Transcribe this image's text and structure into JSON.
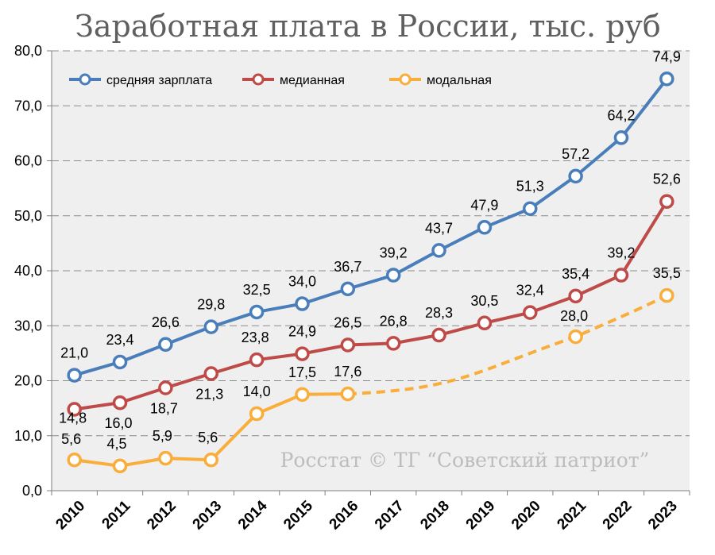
{
  "chart_data": {
    "type": "line",
    "title": "Заработная плата в России, тыс. руб",
    "xlabel": "",
    "ylabel": "",
    "categories": [
      "2010",
      "2011",
      "2012",
      "2013",
      "2014",
      "2015",
      "2016",
      "2017",
      "2018",
      "2019",
      "2020",
      "2021",
      "2022",
      "2023"
    ],
    "ylim": [
      0,
      80
    ],
    "yticks": [
      "0,0",
      "10,0",
      "20,0",
      "30,0",
      "40,0",
      "50,0",
      "60,0",
      "70,0",
      "80,0"
    ],
    "grid": true,
    "legend_position": "top-left",
    "watermark": "Росстат © ТГ “Советский патриот”",
    "series": [
      {
        "name": "средняя зарплата",
        "color": "#4a7ebb",
        "values": [
          21.0,
          23.4,
          26.6,
          29.8,
          32.5,
          34.0,
          36.7,
          39.2,
          43.7,
          47.9,
          51.3,
          57.2,
          64.2,
          74.9
        ],
        "labels": [
          "21,0",
          "23,4",
          "26,6",
          "29,8",
          "32,5",
          "34,0",
          "36,7",
          "39,2",
          "43,7",
          "47,9",
          "51,3",
          "57,2",
          "64,2",
          "74,9"
        ]
      },
      {
        "name": "медианная",
        "color": "#be4b48",
        "values": [
          14.8,
          16.0,
          18.7,
          21.3,
          23.8,
          24.9,
          26.5,
          26.8,
          28.3,
          30.5,
          32.4,
          35.4,
          39.2,
          52.6
        ],
        "labels": [
          "14,8",
          "16,0",
          "18,7",
          "21,3",
          "23,8",
          "24,9",
          "26,5",
          "26,8",
          "28,3",
          "30,5",
          "32,4",
          "35,4",
          "39,2",
          "52,6"
        ]
      },
      {
        "name": "модальная",
        "color": "#f9ad3b",
        "values": [
          5.6,
          4.5,
          5.9,
          5.6,
          14.0,
          17.5,
          17.6,
          null,
          null,
          null,
          null,
          28.0,
          null,
          35.5
        ],
        "labels": [
          "5,6",
          "4,5",
          "5,9",
          "5,6",
          "14,0",
          "17,5",
          "17,6",
          "",
          "",
          "",
          "",
          "28,0",
          "",
          "35,5"
        ],
        "dashed_segment_after": "2016"
      }
    ]
  }
}
